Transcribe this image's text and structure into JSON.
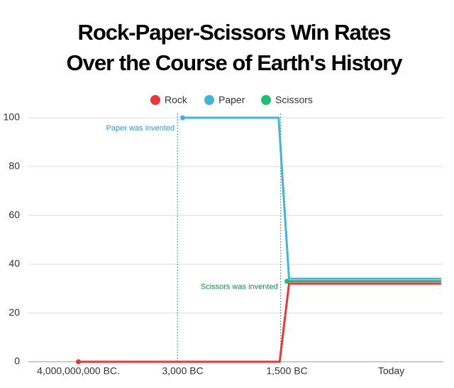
{
  "chart_data": {
    "type": "line",
    "title": [
      "Rock-Paper-Scissors Win Rates",
      "Over the Course of Earth's History"
    ],
    "xlim": [
      -0.48,
      3.5
    ],
    "xticks": [
      {
        "value": 0,
        "label": "4,000,000,000 BC."
      },
      {
        "value": 1,
        "label": "3,000 BC"
      },
      {
        "value": 2,
        "label": "1,500 BC"
      },
      {
        "value": 3,
        "label": "Today"
      }
    ],
    "ylim": [
      0,
      100
    ],
    "yticks": [
      0,
      20,
      40,
      60,
      80,
      100
    ],
    "grid": true,
    "series": [
      {
        "name": "Rock",
        "color": "#e8373a",
        "x": [
          0,
          1.93,
          2.02,
          3.48
        ],
        "values": [
          0,
          0,
          32,
          32
        ]
      },
      {
        "name": "Paper",
        "color": "#44b3d6",
        "x": [
          1,
          1.92,
          2.02,
          3.48
        ],
        "values": [
          100,
          100,
          34,
          34
        ]
      },
      {
        "name": "Scissors",
        "color": "#1dbf73",
        "x": [
          2,
          3.48
        ],
        "values": [
          33,
          33
        ]
      }
    ],
    "annotations": [
      {
        "text": "Paper was invented",
        "x": 0.95,
        "y": 98,
        "color": "#2a9fd0"
      },
      {
        "text": "Scissors was invented",
        "x": 1.94,
        "y": 33,
        "color": "#1a8a4a"
      }
    ]
  }
}
